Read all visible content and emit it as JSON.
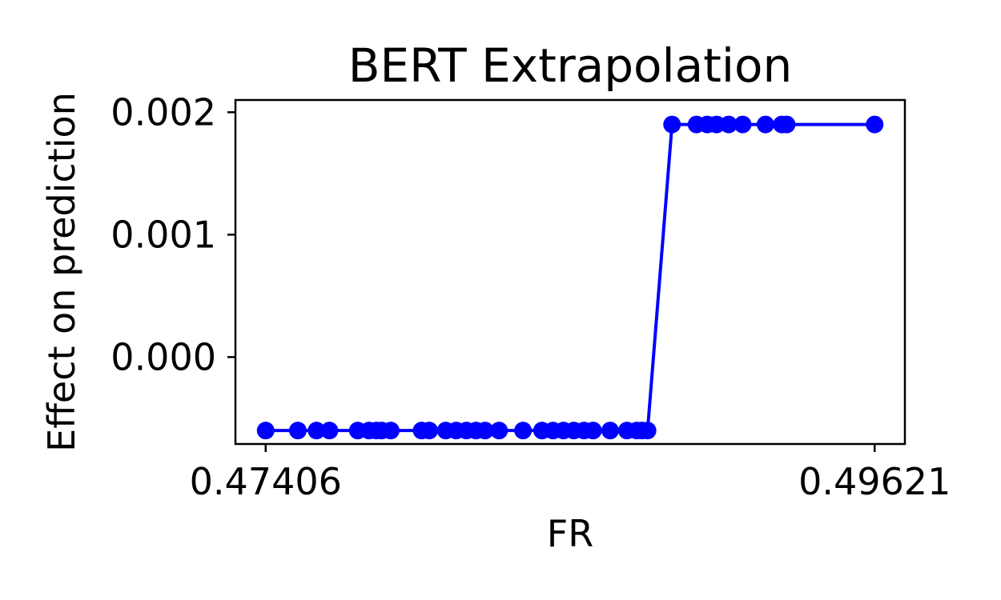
{
  "chart_data": {
    "type": "line",
    "title": "BERT Extrapolation",
    "xlabel": "FR",
    "ylabel": "Effect on prediction",
    "xlim": [
      0.47296,
      0.49731
    ],
    "ylim": [
      -0.00071,
      0.0021
    ],
    "xticks": [
      0.47406,
      0.49621
    ],
    "xtick_labels": [
      "0.47406",
      "0.49621"
    ],
    "yticks": [
      0.0,
      0.001,
      0.002
    ],
    "ytick_labels": [
      "0.000",
      "0.001",
      "0.002"
    ],
    "grid": false,
    "series": [
      {
        "color": "#0000ff",
        "marker": "circle",
        "x": [
          0.47406,
          0.47523,
          0.47591,
          0.47638,
          0.47741,
          0.47782,
          0.47809,
          0.47828,
          0.47861,
          0.47973,
          0.48001,
          0.48061,
          0.48099,
          0.48136,
          0.48171,
          0.48204,
          0.48255,
          0.48342,
          0.48411,
          0.48451,
          0.48489,
          0.48527,
          0.48564,
          0.48597,
          0.48659,
          0.4872,
          0.48756,
          0.48775,
          0.48795,
          0.48884,
          0.48973,
          0.49012,
          0.49046,
          0.4909,
          0.49141,
          0.49224,
          0.49283,
          0.49301,
          0.49621
        ],
        "values": [
          -0.0006,
          -0.0006,
          -0.0006,
          -0.0006,
          -0.0006,
          -0.0006,
          -0.0006,
          -0.0006,
          -0.0006,
          -0.0006,
          -0.0006,
          -0.0006,
          -0.0006,
          -0.0006,
          -0.0006,
          -0.0006,
          -0.0006,
          -0.0006,
          -0.0006,
          -0.0006,
          -0.0006,
          -0.0006,
          -0.0006,
          -0.0006,
          -0.0006,
          -0.0006,
          -0.0006,
          -0.0006,
          -0.0006,
          0.0019,
          0.0019,
          0.0019,
          0.0019,
          0.0019,
          0.0019,
          0.0019,
          0.0019,
          0.0019,
          0.0019
        ]
      }
    ]
  }
}
